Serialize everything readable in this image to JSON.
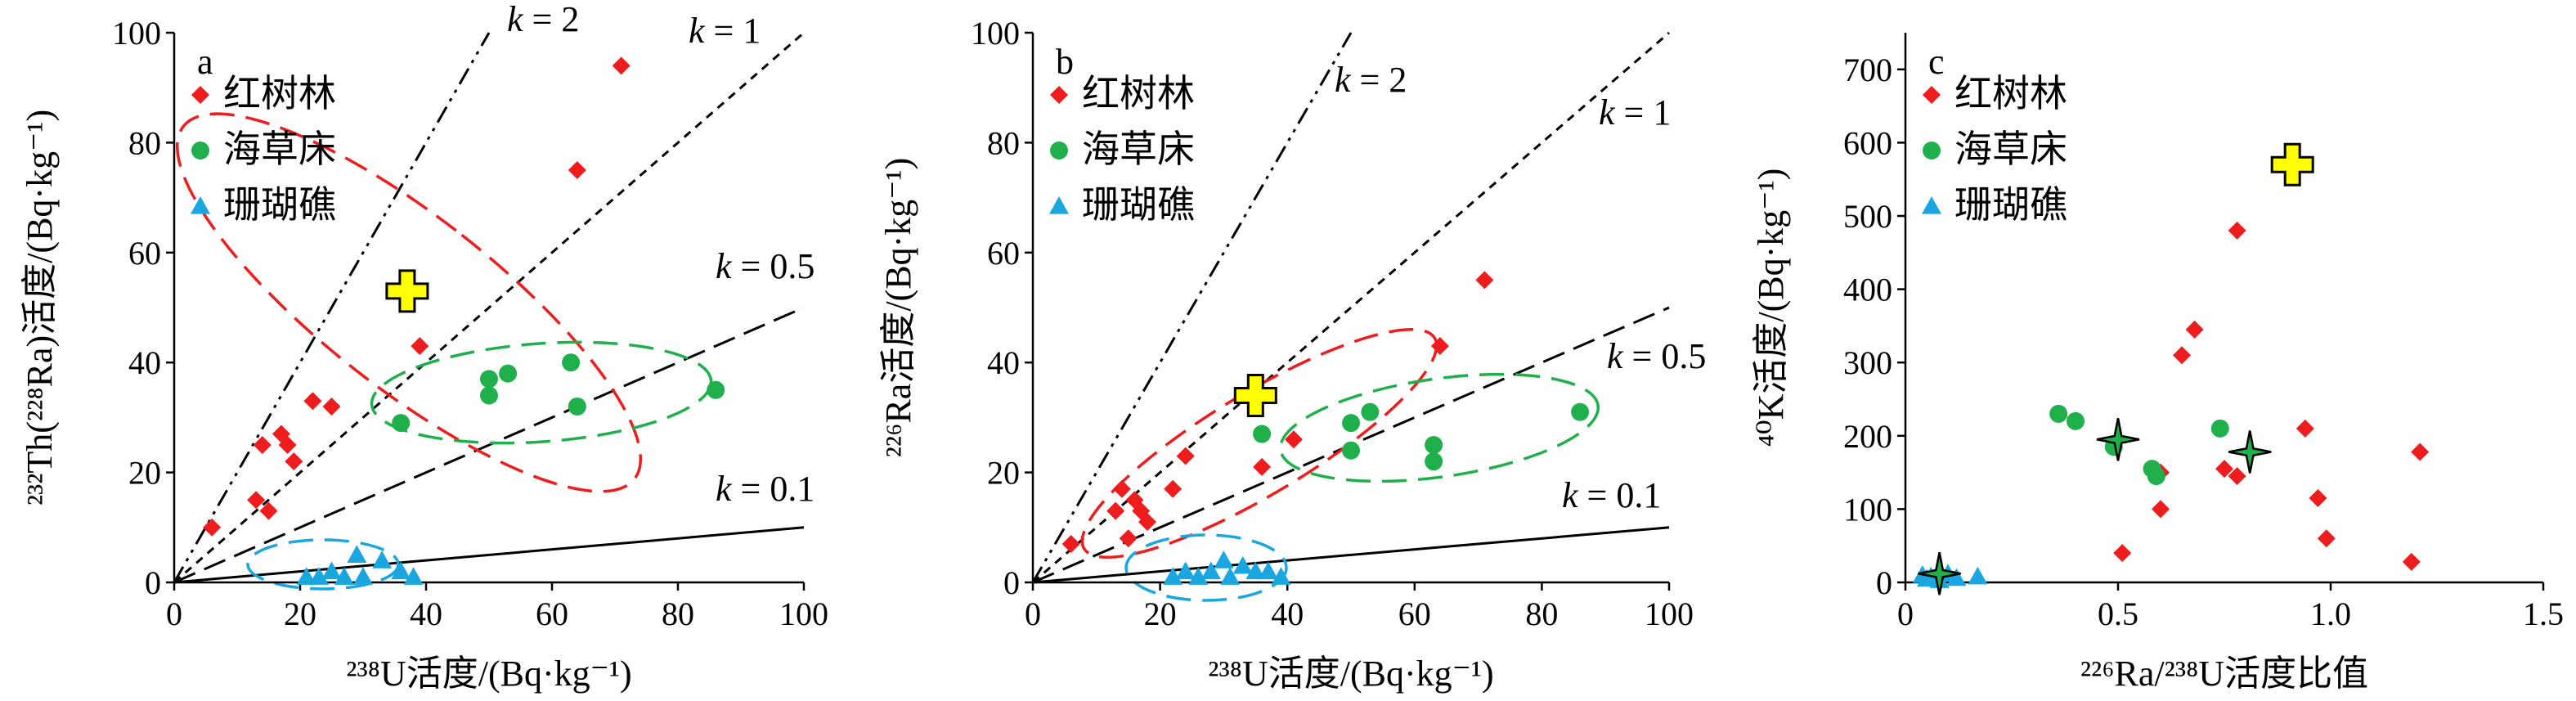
{
  "colors": {
    "mangrove": "#ee1c1c",
    "seagrass": "#1fb04b",
    "coral": "#1aa7e0",
    "special_marker": "#ffff00",
    "axis": "#000000"
  },
  "legend": {
    "mangrove": "红树林",
    "seagrass": "海草床",
    "coral": "珊瑚礁"
  },
  "chart_data": [
    {
      "panel": "a",
      "type": "scatter",
      "xlabel": "²³⁸U活度/(Bq·kg⁻¹)",
      "ylabel": "²³²Th(²²⁸Ra)活度/(Bq·kg⁻¹)",
      "xlim": [
        0,
        100
      ],
      "ylim": [
        0,
        100
      ],
      "xticks": [
        0,
        20,
        40,
        60,
        80,
        100
      ],
      "yticks": [
        0,
        20,
        40,
        60,
        80,
        100
      ],
      "legend_position": "top-left",
      "reference_lines": [
        {
          "k": 2,
          "label": "k = 2",
          "style": "dash-dot-dot"
        },
        {
          "k": 1,
          "label": "k = 1",
          "style": "short-dash"
        },
        {
          "k": 0.5,
          "label": "k = 0.5",
          "style": "long-dash"
        },
        {
          "k": 0.1,
          "label": "k = 0.1",
          "style": "solid"
        }
      ],
      "series": [
        {
          "name": "红树林",
          "marker": "diamond",
          "points": [
            [
              6,
              10
            ],
            [
              13,
              15
            ],
            [
              14,
              25
            ],
            [
              15,
              13
            ],
            [
              17,
              27
            ],
            [
              18,
              25
            ],
            [
              19,
              22
            ],
            [
              22,
              33
            ],
            [
              25,
              32
            ],
            [
              39,
              43
            ],
            [
              64,
              75
            ],
            [
              71,
              94
            ]
          ]
        },
        {
          "name": "海草床",
          "marker": "circle",
          "points": [
            [
              36,
              29
            ],
            [
              50,
              34
            ],
            [
              50,
              37
            ],
            [
              53,
              38
            ],
            [
              63,
              40
            ],
            [
              64,
              32
            ],
            [
              86,
              35
            ]
          ]
        },
        {
          "name": "珊瑚礁",
          "marker": "triangle",
          "points": [
            [
              21,
              1
            ],
            [
              23,
              1
            ],
            [
              25,
              2
            ],
            [
              27,
              1
            ],
            [
              29,
              5
            ],
            [
              30,
              1
            ],
            [
              33,
              4
            ],
            [
              36,
              2
            ],
            [
              38,
              1
            ]
          ]
        }
      ],
      "special_point": {
        "marker": "cross",
        "x": 37,
        "y": 53
      }
    },
    {
      "panel": "b",
      "type": "scatter",
      "xlabel": "²³⁸U活度/(Bq·kg⁻¹)",
      "ylabel": "²²⁶Ra活度/(Bq·kg⁻¹)",
      "xlim": [
        0,
        100
      ],
      "ylim": [
        0,
        100
      ],
      "xticks": [
        0,
        20,
        40,
        60,
        80,
        100
      ],
      "yticks": [
        0,
        20,
        40,
        60,
        80,
        100
      ],
      "legend_position": "top-left",
      "reference_lines": [
        {
          "k": 2,
          "label": "k = 2",
          "style": "dash-dot-dot"
        },
        {
          "k": 1,
          "label": "k = 1",
          "style": "short-dash"
        },
        {
          "k": 0.5,
          "label": "k = 0.5",
          "style": "long-dash"
        },
        {
          "k": 0.1,
          "label": "k = 0.1",
          "style": "solid"
        }
      ],
      "series": [
        {
          "name": "红树林",
          "marker": "diamond",
          "points": [
            [
              6,
              7
            ],
            [
              13,
              13
            ],
            [
              14,
              17
            ],
            [
              15,
              8
            ],
            [
              16,
              15
            ],
            [
              17,
              13
            ],
            [
              18,
              11
            ],
            [
              22,
              17
            ],
            [
              24,
              23
            ],
            [
              36,
              21
            ],
            [
              41,
              26
            ],
            [
              64,
              43
            ],
            [
              71,
              55
            ]
          ]
        },
        {
          "name": "海草床",
          "marker": "circle",
          "points": [
            [
              36,
              27
            ],
            [
              50,
              24
            ],
            [
              50,
              29
            ],
            [
              53,
              31
            ],
            [
              63,
              25
            ],
            [
              63,
              22
            ],
            [
              86,
              31
            ]
          ]
        },
        {
          "name": "珊瑚礁",
          "marker": "triangle",
          "points": [
            [
              22,
              1
            ],
            [
              24,
              2
            ],
            [
              26,
              1
            ],
            [
              28,
              2
            ],
            [
              30,
              4
            ],
            [
              31,
              1
            ],
            [
              33,
              3
            ],
            [
              35,
              2
            ],
            [
              37,
              2
            ],
            [
              39,
              1
            ]
          ]
        }
      ],
      "special_point": {
        "marker": "cross",
        "x": 35,
        "y": 34
      }
    },
    {
      "panel": "c",
      "type": "scatter",
      "xlabel": "²²⁶Ra/²³⁸U活度比值",
      "ylabel": "⁴⁰K活度/(Bq·kg⁻¹)",
      "xlim": [
        0,
        1.5
      ],
      "ylim": [
        0,
        750
      ],
      "xticks": [
        0,
        0.5,
        1,
        1.5
      ],
      "xtick_labels": [
        "0",
        "0.5",
        "1.0",
        "1.5"
      ],
      "yticks": [
        0,
        100,
        200,
        300,
        400,
        500,
        600,
        700
      ],
      "legend_position": "top-left",
      "series": [
        {
          "name": "红树林",
          "marker": "diamond",
          "points": [
            [
              0.51,
              40
            ],
            [
              0.6,
              100
            ],
            [
              0.6,
              150
            ],
            [
              0.65,
              310
            ],
            [
              0.68,
              345
            ],
            [
              0.75,
              155
            ],
            [
              0.78,
              145
            ],
            [
              0.78,
              480
            ],
            [
              0.94,
              210
            ],
            [
              0.97,
              115
            ],
            [
              0.99,
              60
            ],
            [
              1.19,
              28
            ],
            [
              1.21,
              178
            ]
          ]
        },
        {
          "name": "海草床",
          "marker": "circle",
          "points": [
            [
              0.36,
              230
            ],
            [
              0.4,
              220
            ],
            [
              0.49,
              185
            ],
            [
              0.58,
              155
            ],
            [
              0.59,
              145
            ],
            [
              0.74,
              210
            ]
          ]
        },
        {
          "name": "珊瑚礁",
          "marker": "triangle",
          "points": [
            [
              0.04,
              10
            ],
            [
              0.05,
              5
            ],
            [
              0.06,
              8
            ],
            [
              0.08,
              3
            ],
            [
              0.1,
              12
            ],
            [
              0.12,
              6
            ],
            [
              0.17,
              8
            ]
          ]
        }
      ],
      "star_points": [
        [
          0.08,
          12
        ],
        [
          0.5,
          195
        ],
        [
          0.81,
          178
        ]
      ],
      "special_point": {
        "marker": "cross",
        "x": 0.91,
        "y": 570
      }
    }
  ]
}
